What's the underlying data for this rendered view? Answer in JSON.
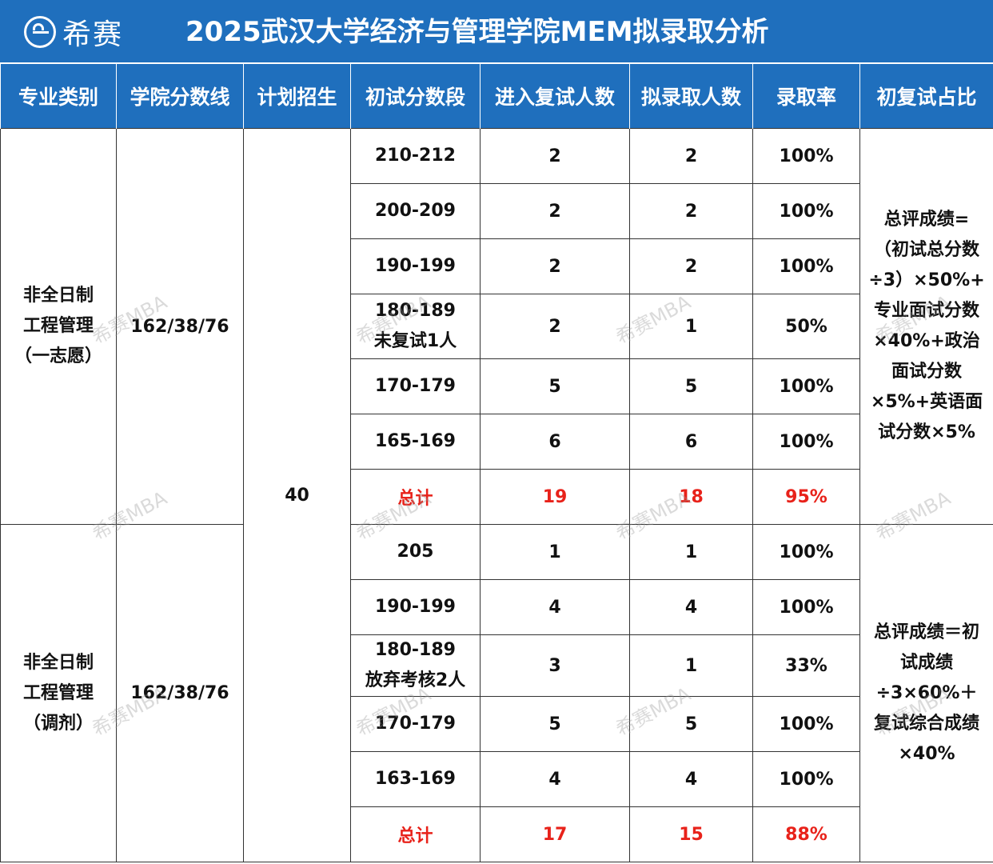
{
  "header": {
    "logo_text": "希赛",
    "title": "2025武汉大学经济与管理学院MEM拟录取分析"
  },
  "columns": [
    "专业类别",
    "学院分数线",
    "计划招生",
    "初试分数段",
    "进入复试人数",
    "拟录取人数",
    "录取率",
    "初复试占比"
  ],
  "plan_total": "40",
  "groups": [
    {
      "category": [
        "非全日制",
        "工程管理",
        "（一志愿）"
      ],
      "line": "162/38/76",
      "formula": [
        "总评成绩=",
        "（初试总分数",
        "÷3）×50%+",
        "专业面试分数",
        "×40%+政治",
        "面试分数",
        "×5%+英语面",
        "试分数×5%"
      ],
      "rows": [
        {
          "range": "210-212",
          "note": "",
          "interview": "2",
          "admitted": "2",
          "rate": "100%"
        },
        {
          "range": "200-209",
          "note": "",
          "interview": "2",
          "admitted": "2",
          "rate": "100%"
        },
        {
          "range": "190-199",
          "note": "",
          "interview": "2",
          "admitted": "2",
          "rate": "100%"
        },
        {
          "range": "180-189",
          "note": "未复试1人",
          "interview": "2",
          "admitted": "1",
          "rate": "50%"
        },
        {
          "range": "170-179",
          "note": "",
          "interview": "5",
          "admitted": "5",
          "rate": "100%"
        },
        {
          "range": "165-169",
          "note": "",
          "interview": "6",
          "admitted": "6",
          "rate": "100%"
        }
      ],
      "total": {
        "label": "总计",
        "interview": "19",
        "admitted": "18",
        "rate": "95%"
      }
    },
    {
      "category": [
        "非全日制",
        "工程管理",
        "（调剂）"
      ],
      "line": "162/38/76",
      "formula": [
        "总评成绩＝初",
        "试成绩",
        "÷3×60%＋",
        "复试综合成绩",
        "×40%"
      ],
      "rows": [
        {
          "range": "205",
          "note": "",
          "interview": "1",
          "admitted": "1",
          "rate": "100%"
        },
        {
          "range": "190-199",
          "note": "",
          "interview": "4",
          "admitted": "4",
          "rate": "100%"
        },
        {
          "range": "180-189",
          "note": "放弃考核2人",
          "interview": "3",
          "admitted": "1",
          "rate": "33%"
        },
        {
          "range": "170-179",
          "note": "",
          "interview": "5",
          "admitted": "5",
          "rate": "100%"
        },
        {
          "range": "163-169",
          "note": "",
          "interview": "4",
          "admitted": "4",
          "rate": "100%"
        }
      ],
      "total": {
        "label": "总计",
        "interview": "17",
        "admitted": "15",
        "rate": "88%"
      }
    }
  ],
  "watermark": "希赛MBA",
  "colors": {
    "header_bg": "#1f6fbd",
    "total_text": "#e8221a",
    "border": "#333333"
  }
}
